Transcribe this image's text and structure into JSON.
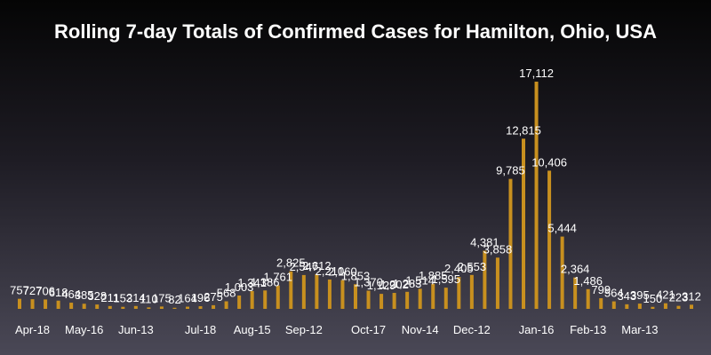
{
  "chart_data": {
    "type": "bar",
    "title": "Rolling 7-day Totals of Confirmed Cases for Hamilton, Ohio, USA",
    "xlabel": "",
    "ylabel": "",
    "ylim": [
      0,
      17500
    ],
    "grid": false,
    "legend": "none",
    "bar_color": "#c8901f",
    "x_tick_labels": [
      {
        "label": "Apr-18",
        "index": 1
      },
      {
        "label": "May-16",
        "index": 5
      },
      {
        "label": "Jun-13",
        "index": 9
      },
      {
        "label": "Jul-18",
        "index": 14
      },
      {
        "label": "Aug-15",
        "index": 18
      },
      {
        "label": "Sep-12",
        "index": 22
      },
      {
        "label": "Oct-17",
        "index": 27
      },
      {
        "label": "Nov-14",
        "index": 31
      },
      {
        "label": "Dec-12",
        "index": 35
      },
      {
        "label": "Jan-16",
        "index": 40
      },
      {
        "label": "Feb-13",
        "index": 44
      },
      {
        "label": "Mar-13",
        "index": 48
      }
    ],
    "values": [
      757,
      727,
      706,
      618,
      464,
      385,
      328,
      211,
      153,
      214,
      110,
      175,
      82,
      164,
      196,
      275,
      568,
      1003,
      1341,
      1386,
      1761,
      2825,
      2547,
      2612,
      2210,
      2160,
      1853,
      1370,
      1129,
      1202,
      1283,
      1514,
      1885,
      1595,
      2405,
      2553,
      4381,
      3858,
      9785,
      12815,
      17112,
      10406,
      5444,
      2364,
      1486,
      799,
      564,
      343,
      395,
      150,
      421,
      223,
      312
    ],
    "data_labels": [
      "757",
      "727",
      "706",
      "618",
      "464",
      "385",
      "328",
      "211",
      "153",
      "214",
      "110",
      "175",
      "82",
      "164",
      "196",
      "275",
      "568",
      "1,003",
      "1,341",
      "1,386",
      "1,761",
      "2,825",
      "2,547",
      "2,612",
      "2,210",
      "2,160",
      "1,853",
      "1,370",
      "1,129",
      "1,202",
      "1,283",
      "1,514",
      "1,885",
      "1,595",
      "2,405",
      "2,553",
      "4,381",
      "3,858",
      "9,785",
      "12,815",
      "17,112",
      "10,406",
      "5,444",
      "2,364",
      "1,486",
      "799",
      "564",
      "343",
      "395",
      "150",
      "421",
      "223",
      "312"
    ]
  }
}
